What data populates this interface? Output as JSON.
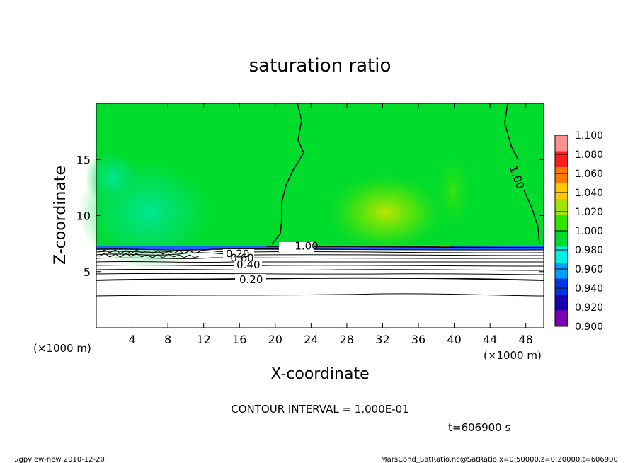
{
  "chart_data": {
    "type": "heatmap",
    "title": "saturation ratio",
    "xlabel": "X-coordinate",
    "ylabel": "Z-coordinate",
    "x_unit_left": "(×1000 m)",
    "x_unit_right": "(×1000 m)",
    "xlim": [
      0,
      50
    ],
    "ylim": [
      0,
      20
    ],
    "x_ticks": [
      4,
      8,
      12,
      16,
      20,
      24,
      28,
      32,
      36,
      40,
      44,
      48
    ],
    "y_ticks": [
      5,
      10,
      15
    ],
    "colorbar": {
      "levels": [
        "0.900",
        "0.920",
        "0.940",
        "0.960",
        "0.980",
        "1.000",
        "1.020",
        "1.040",
        "1.060",
        "1.080",
        "1.100"
      ],
      "colors": [
        "#7a00b4",
        "#1a00b0",
        "#0032e6",
        "#00a0ff",
        "#00f0e6",
        "#00dc2c",
        "#30e600",
        "#a0e600",
        "#ffc800",
        "#ff7800",
        "#ff1e1e",
        "#ff9090"
      ]
    },
    "contour_labels": [
      {
        "text": "1.00",
        "x": 23.5,
        "z": 7.3
      },
      {
        "text": "1.00",
        "x": 47.0,
        "z": 13.4
      },
      {
        "text": "0.20",
        "x": 15.8,
        "z": 6.6
      },
      {
        "text": "0.60",
        "x": 16.3,
        "z": 6.2
      },
      {
        "text": "0.40",
        "x": 17.0,
        "z": 5.6
      },
      {
        "text": "0.20",
        "x": 17.3,
        "z": 4.3
      }
    ],
    "contour_interval": "CONTOUR INTERVAL = 1.000E-01",
    "time": "t=606900 s"
  },
  "footer": {
    "left": "./gpview-new   2010-12-20",
    "right": "MarsCond_SatRatio.nc@SatRatio,x=0:50000,z=0:20000,t=606900"
  }
}
